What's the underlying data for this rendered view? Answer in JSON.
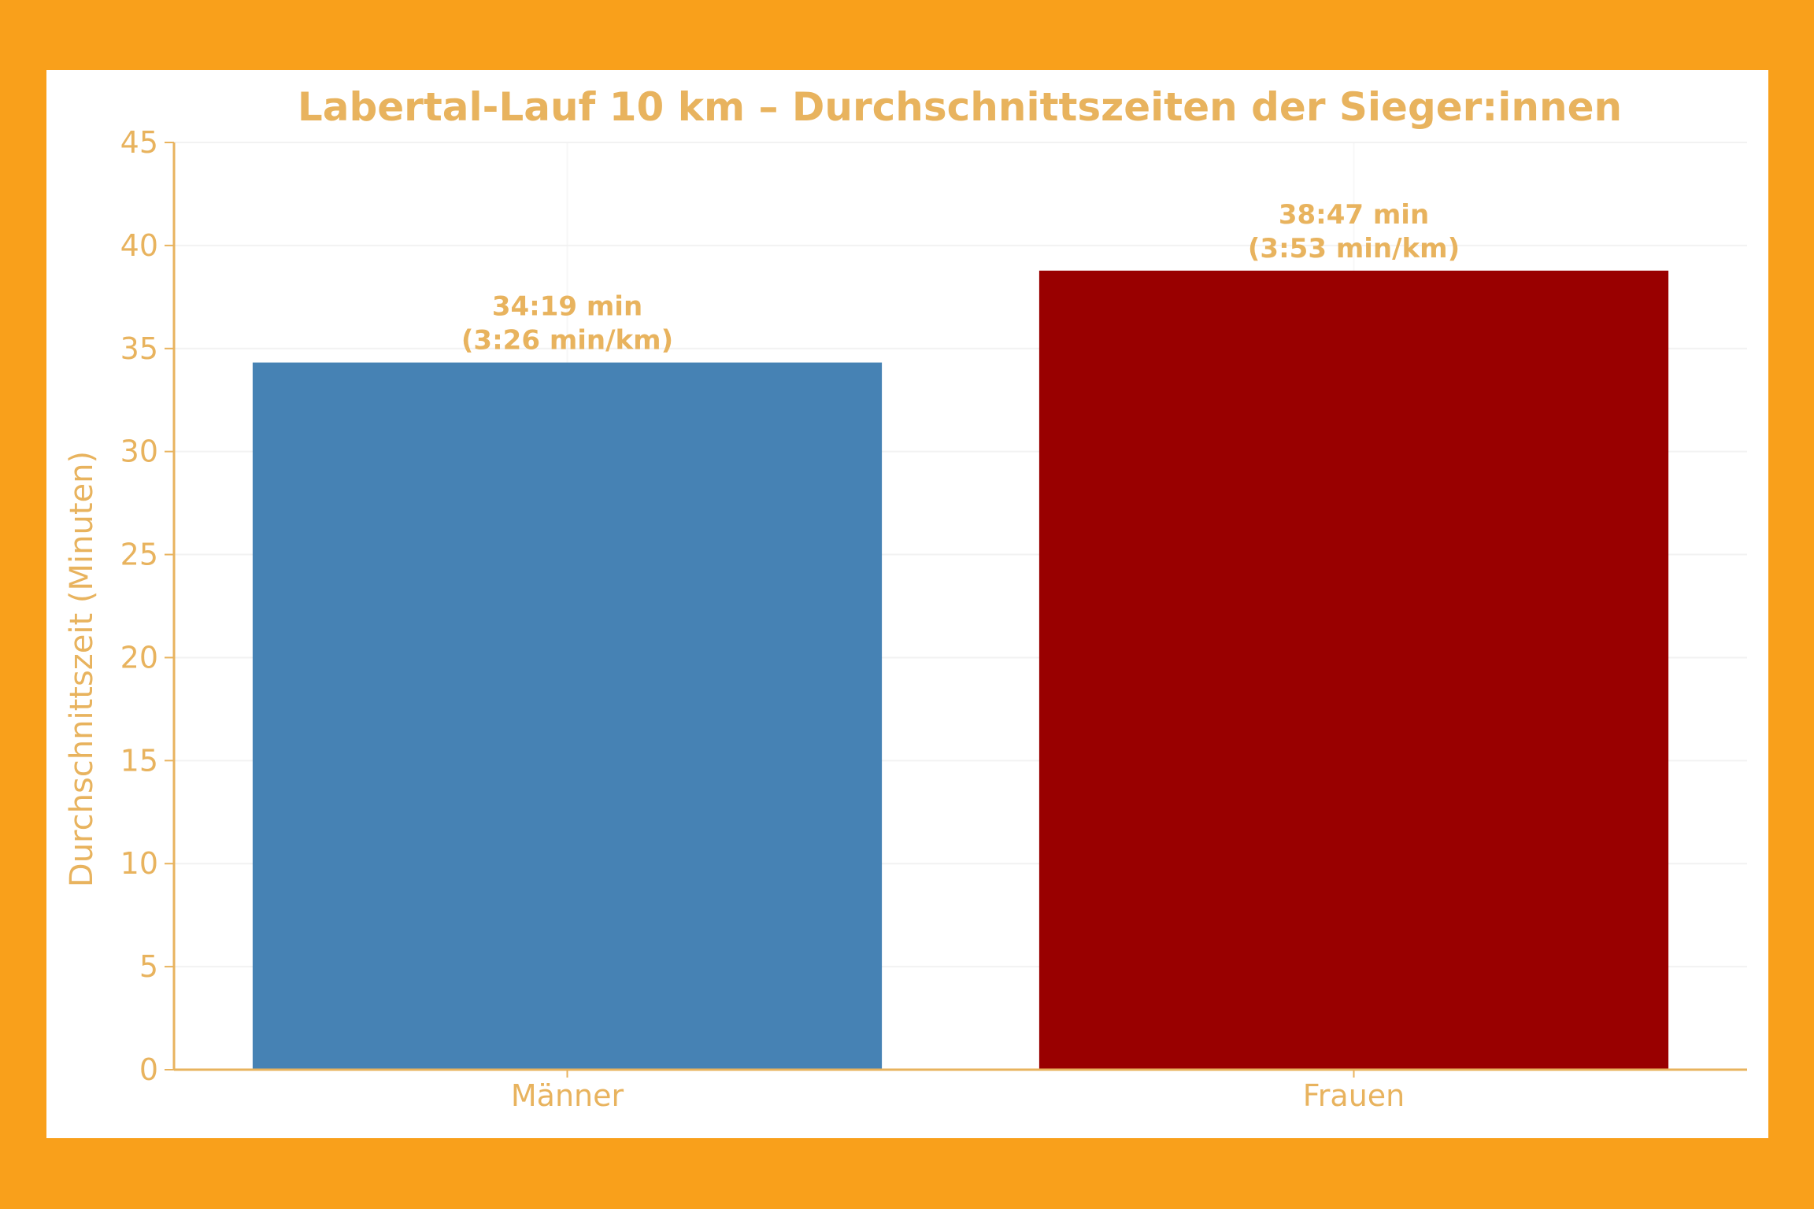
{
  "colors": {
    "frame_border": "#f9a01b",
    "text": "#e8b35e",
    "axis": "#e8b35e",
    "grid": "#f2f2f2",
    "bar_maenner": "#4682b4",
    "bar_frauen": "#990000"
  },
  "chart_data": {
    "type": "bar",
    "title": "Labertal-Lauf 10 km – Durchschnittszeiten der Sieger:innen",
    "xlabel": "",
    "ylabel": "Durchschnittszeit (Minuten)",
    "categories": [
      "Männer",
      "Frauen"
    ],
    "values": [
      34.32,
      38.78
    ],
    "data_labels": [
      [
        "34:19 min",
        "(3:26 min/km)"
      ],
      [
        "38:47 min",
        "(3:53 min/km)"
      ]
    ],
    "bar_colors": [
      "#4682b4",
      "#990000"
    ],
    "ylim": [
      0,
      45
    ],
    "yticks": [
      "0",
      "5",
      "10",
      "15",
      "20",
      "25",
      "30",
      "35",
      "40",
      "45"
    ],
    "grid": true,
    "legend": "none"
  }
}
